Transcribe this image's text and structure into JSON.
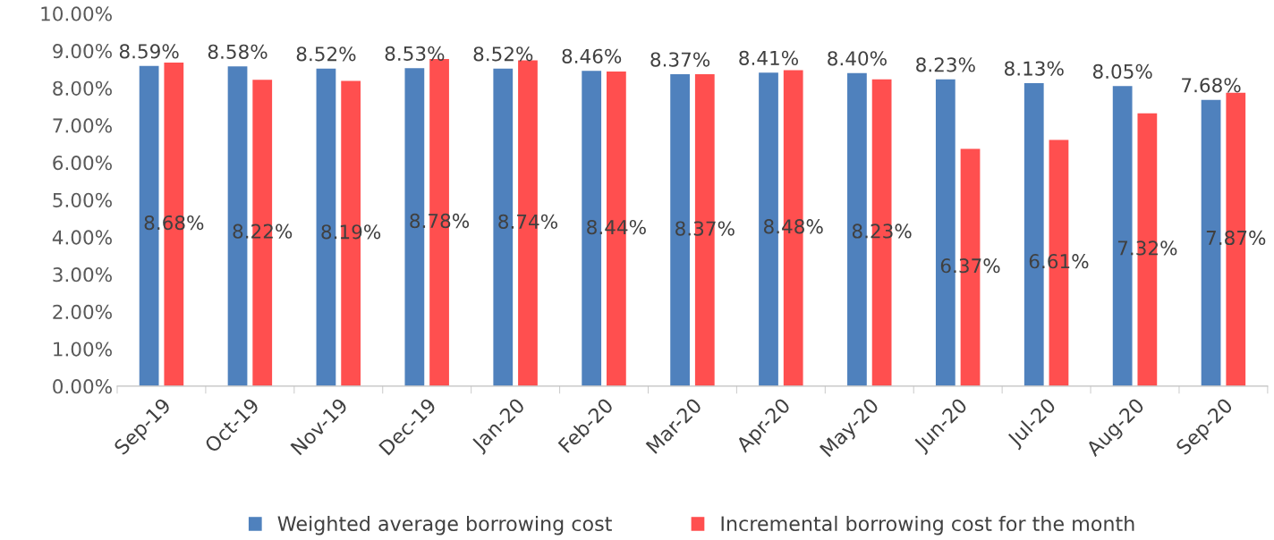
{
  "chart_data": {
    "type": "bar",
    "categories": [
      "Sep-19",
      "Oct-19",
      "Nov-19",
      "Dec-19",
      "Jan-20",
      "Feb-20",
      "Mar-20",
      "Apr-20",
      "May-20",
      "Jun-20",
      "Jul-20",
      "Aug-20",
      "Sep-20"
    ],
    "series": [
      {
        "name": "Weighted average borrowing cost",
        "color": "#4f81bd",
        "values": [
          8.59,
          8.58,
          8.52,
          8.53,
          8.52,
          8.46,
          8.37,
          8.41,
          8.4,
          8.23,
          8.13,
          8.05,
          7.68
        ],
        "value_labels": [
          "8.59%",
          "8.58%",
          "8.52%",
          "8.53%",
          "8.52%",
          "8.46%",
          "8.37%",
          "8.41%",
          "8.40%",
          "8.23%",
          "8.13%",
          "8.05%",
          "7.68%"
        ]
      },
      {
        "name": "Incremental borrowing cost for the month",
        "color": "#ff4f4f",
        "values": [
          8.68,
          8.22,
          8.19,
          8.78,
          8.74,
          8.44,
          8.37,
          8.48,
          8.23,
          6.37,
          6.61,
          7.32,
          7.87
        ],
        "value_labels": [
          "8.68%",
          "8.22%",
          "8.19%",
          "8.78%",
          "8.74%",
          "8.44%",
          "8.37%",
          "8.48%",
          "8.23%",
          "6.37%",
          "6.61%",
          "7.32%",
          "7.87%"
        ]
      }
    ],
    "ylim": [
      0,
      10
    ],
    "yticks": [
      {
        "value": 0,
        "label": "0.00%"
      },
      {
        "value": 1,
        "label": "1.00%"
      },
      {
        "value": 2,
        "label": "2.00%"
      },
      {
        "value": 3,
        "label": "3.00%"
      },
      {
        "value": 4,
        "label": "4.00%"
      },
      {
        "value": 5,
        "label": "5.00%"
      },
      {
        "value": 6,
        "label": "6.00%"
      },
      {
        "value": 7,
        "label": "7.00%"
      },
      {
        "value": 8,
        "label": "8.00%"
      },
      {
        "value": 9,
        "label": "9.00%"
      },
      {
        "value": 10,
        "label": "10.00%"
      }
    ],
    "grid": false,
    "legend": "bottom"
  }
}
